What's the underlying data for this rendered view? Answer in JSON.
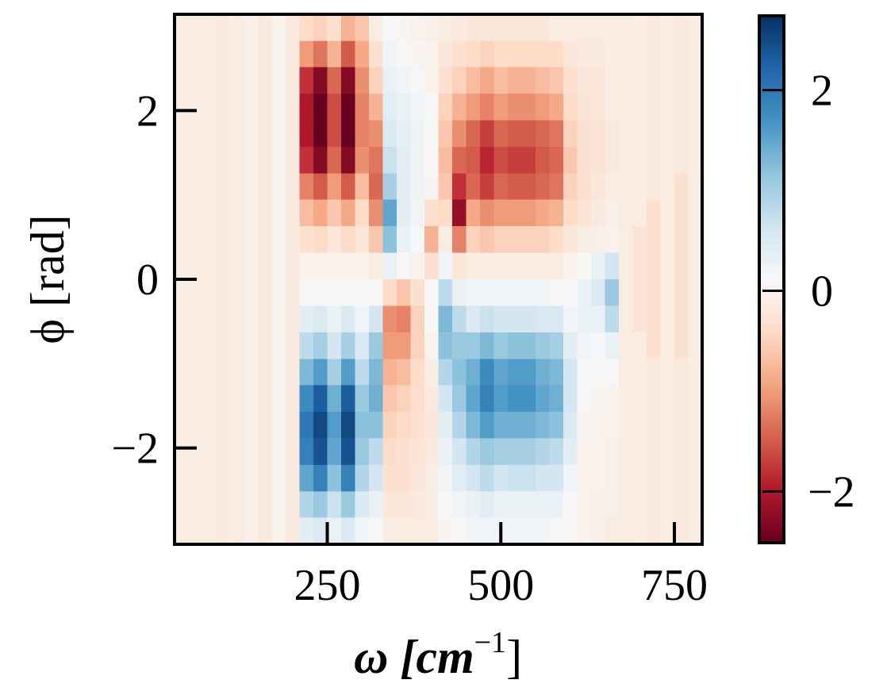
{
  "chart_data": {
    "type": "heatmap",
    "title": "",
    "xlabel": "ω [cm",
    "xlabel_sup": "−1",
    "xlabel_close": "]",
    "ylabel": "ϕ [rad]",
    "xlim": [
      30,
      790
    ],
    "ylim": [
      -3.1416,
      3.1416
    ],
    "x_ticks": [
      250,
      500,
      750
    ],
    "x_tick_labels": [
      "250",
      "500",
      "750"
    ],
    "y_ticks": [
      2,
      0,
      -2
    ],
    "y_tick_labels": [
      "2",
      "0",
      "−2"
    ],
    "colormap": "RdBu",
    "colorbar": {
      "vmin": -2.51,
      "vmax": 2.74,
      "ticks": [
        2,
        0,
        -2
      ],
      "tick_labels": [
        "2",
        "0",
        "−2"
      ]
    },
    "grid": false,
    "x": [
      40,
      60,
      80,
      100,
      120,
      140,
      160,
      180,
      200,
      220,
      240,
      260,
      280,
      300,
      320,
      340,
      360,
      380,
      400,
      420,
      440,
      460,
      480,
      500,
      520,
      540,
      560,
      580,
      600,
      620,
      640,
      660,
      680,
      700,
      720,
      740,
      760,
      780
    ],
    "y": [
      2.98,
      2.67,
      2.36,
      2.04,
      1.73,
      1.41,
      1.1,
      0.79,
      0.47,
      0.16,
      -0.16,
      -0.47,
      -0.79,
      -1.1,
      -1.41,
      -1.73,
      -2.04,
      -2.36,
      -2.67,
      -2.98
    ],
    "z_by_column": [
      [
        -0.1,
        -0.1,
        -0.1,
        -0.1,
        -0.1,
        -0.1,
        -0.1,
        -0.1,
        -0.1,
        -0.1,
        -0.1,
        -0.1,
        -0.1,
        -0.1,
        -0.1,
        -0.1,
        -0.1,
        -0.1,
        -0.1,
        -0.1
      ],
      [
        -0.1,
        -0.1,
        -0.1,
        -0.1,
        -0.1,
        -0.1,
        -0.1,
        -0.1,
        -0.1,
        -0.1,
        -0.1,
        -0.1,
        -0.1,
        -0.1,
        -0.1,
        -0.1,
        -0.1,
        -0.1,
        -0.1,
        -0.1
      ],
      [
        -0.1,
        -0.1,
        -0.1,
        -0.1,
        -0.1,
        -0.1,
        -0.1,
        -0.1,
        -0.1,
        -0.1,
        -0.1,
        -0.1,
        -0.1,
        -0.1,
        -0.1,
        -0.1,
        -0.1,
        -0.1,
        -0.1,
        -0.1
      ],
      [
        -0.15,
        -0.15,
        -0.15,
        -0.15,
        -0.15,
        -0.15,
        -0.15,
        -0.15,
        -0.15,
        -0.15,
        -0.15,
        -0.15,
        -0.15,
        -0.15,
        -0.15,
        -0.15,
        -0.15,
        -0.15,
        -0.15,
        -0.15
      ],
      [
        -0.1,
        -0.1,
        -0.1,
        -0.1,
        -0.1,
        -0.1,
        -0.1,
        -0.1,
        -0.1,
        -0.1,
        -0.1,
        -0.1,
        -0.1,
        -0.1,
        -0.1,
        -0.1,
        -0.1,
        -0.1,
        -0.1,
        -0.1
      ],
      [
        -0.05,
        -0.05,
        -0.05,
        -0.05,
        -0.05,
        -0.05,
        -0.05,
        -0.05,
        -0.05,
        -0.05,
        -0.05,
        -0.05,
        -0.05,
        -0.05,
        -0.05,
        -0.05,
        -0.05,
        -0.05,
        -0.05,
        -0.05
      ],
      [
        -0.15,
        -0.15,
        -0.15,
        -0.15,
        -0.15,
        -0.15,
        -0.15,
        -0.15,
        -0.15,
        -0.15,
        -0.15,
        -0.15,
        -0.15,
        -0.15,
        -0.15,
        -0.15,
        -0.15,
        -0.15,
        -0.15,
        -0.15
      ],
      [
        0,
        0,
        0,
        0,
        0,
        0,
        0,
        0,
        0,
        0,
        0,
        0,
        0,
        0,
        0,
        0,
        0,
        0,
        0,
        0
      ],
      [
        -0.15,
        -0.15,
        -0.15,
        -0.15,
        -0.15,
        -0.15,
        -0.15,
        -0.15,
        -0.15,
        -0.15,
        -0.15,
        -0.15,
        -0.15,
        -0.15,
        -0.15,
        -0.15,
        -0.15,
        -0.15,
        -0.15,
        -0.15
      ],
      [
        -0.4,
        -1.0,
        -1.8,
        -2.0,
        -2.0,
        -1.8,
        -1.2,
        -0.7,
        -0.3,
        0.0,
        0.1,
        0.4,
        0.8,
        1.3,
        1.8,
        2.0,
        1.9,
        1.5,
        0.9,
        0.4
      ],
      [
        -0.5,
        -1.3,
        -2.3,
        -2.5,
        -2.5,
        -2.3,
        -1.5,
        -0.9,
        -0.4,
        0.0,
        0.1,
        0.5,
        1.0,
        1.6,
        2.3,
        2.5,
        2.4,
        1.9,
        1.1,
        0.5
      ],
      [
        -0.3,
        -0.8,
        -1.4,
        -1.6,
        -1.6,
        -1.4,
        -1.0,
        -0.6,
        -0.2,
        0.0,
        0.1,
        0.3,
        0.6,
        1.0,
        1.4,
        1.6,
        1.5,
        1.2,
        0.7,
        0.3
      ],
      [
        -0.8,
        -1.5,
        -2.3,
        -2.5,
        -2.5,
        -2.3,
        -1.5,
        -0.9,
        -0.4,
        0.0,
        0.1,
        0.5,
        1.0,
        1.6,
        2.3,
        2.5,
        2.4,
        1.9,
        1.1,
        0.5
      ],
      [
        -0.6,
        -0.9,
        -1.1,
        -1.2,
        -1.2,
        -1.1,
        -0.7,
        -0.4,
        -0.2,
        0.0,
        0.1,
        0.2,
        0.5,
        0.8,
        1.1,
        1.2,
        1.1,
        0.9,
        0.5,
        0.2
      ],
      [
        -0.1,
        -0.3,
        -0.5,
        -0.8,
        -1.1,
        -1.3,
        -1.4,
        -1.1,
        -0.6,
        -0.1,
        0.1,
        0.6,
        1.1,
        1.3,
        1.4,
        1.2,
        0.8,
        0.6,
        0.3,
        0.1
      ],
      [
        0.1,
        0.2,
        0.3,
        0.4,
        0.5,
        0.7,
        1.0,
        1.5,
        1.2,
        0.3,
        -0.4,
        -1.1,
        -1.0,
        -0.8,
        -0.6,
        -0.5,
        -0.4,
        -0.3,
        -0.2,
        -0.1
      ],
      [
        0.05,
        0.1,
        0.2,
        0.3,
        0.35,
        0.4,
        0.4,
        0.4,
        0.3,
        0.1,
        -0.6,
        -1.2,
        -1.0,
        -0.7,
        -0.5,
        -0.4,
        -0.3,
        -0.3,
        -0.2,
        -0.1
      ],
      [
        0,
        0.05,
        0.1,
        0.2,
        0.25,
        0.25,
        0.25,
        0.2,
        0.15,
        0,
        -0.3,
        -0.5,
        -0.5,
        -0.4,
        -0.35,
        -0.3,
        -0.25,
        -0.2,
        -0.15,
        -0.1
      ],
      [
        -0.05,
        0,
        0,
        0.1,
        0.1,
        0.1,
        0.05,
        -0.3,
        -0.8,
        -0.3,
        0.1,
        0.1,
        0,
        -0.1,
        -0.15,
        -0.2,
        -0.15,
        -0.1,
        -0.1,
        -0.1
      ],
      [
        -0.1,
        -0.2,
        -0.3,
        -0.5,
        -0.6,
        -0.7,
        -0.6,
        -0.4,
        -0.1,
        0.2,
        0.8,
        1.3,
        1.2,
        0.9,
        0.6,
        0.4,
        0.3,
        0.2,
        0.1,
        0.05
      ],
      [
        -0.15,
        -0.3,
        -0.5,
        -0.8,
        -1.1,
        -1.4,
        -1.8,
        -2.2,
        -1.2,
        -0.2,
        0.3,
        0.8,
        1.1,
        1.2,
        1.1,
        0.9,
        0.6,
        0.4,
        0.2,
        0.1
      ],
      [
        -0.2,
        -0.4,
        -0.7,
        -1.0,
        -1.4,
        -1.5,
        -1.4,
        -0.9,
        -0.5,
        -0.1,
        0.2,
        0.5,
        1.1,
        1.4,
        1.5,
        1.3,
        0.9,
        0.6,
        0.3,
        0.2
      ],
      [
        -0.2,
        -0.5,
        -0.9,
        -1.2,
        -1.7,
        -1.9,
        -1.7,
        -1.1,
        -0.6,
        -0.1,
        0.2,
        0.7,
        1.3,
        1.8,
        1.9,
        1.6,
        1.1,
        0.8,
        0.4,
        0.2
      ],
      [
        -0.2,
        -0.4,
        -0.7,
        -1.0,
        -1.4,
        -1.6,
        -1.4,
        -1.0,
        -0.5,
        -0.1,
        0.2,
        0.6,
        1.1,
        1.5,
        1.6,
        1.4,
        1.0,
        0.6,
        0.3,
        0.2
      ],
      [
        -0.2,
        -0.4,
        -0.8,
        -1.1,
        -1.5,
        -1.7,
        -1.5,
        -1.0,
        -0.5,
        -0.1,
        0.2,
        0.6,
        1.2,
        1.6,
        1.7,
        1.4,
        1.0,
        0.7,
        0.3,
        0.2
      ],
      [
        -0.2,
        -0.4,
        -0.8,
        -1.1,
        -1.5,
        -1.7,
        -1.5,
        -1.0,
        -0.5,
        -0.1,
        0.2,
        0.6,
        1.2,
        1.6,
        1.7,
        1.4,
        1.0,
        0.7,
        0.3,
        0.2
      ],
      [
        -0.2,
        -0.4,
        -0.7,
        -1.0,
        -1.4,
        -1.5,
        -1.4,
        -0.9,
        -0.5,
        -0.1,
        0.2,
        0.5,
        1.1,
        1.4,
        1.5,
        1.3,
        0.9,
        0.6,
        0.3,
        0.2
      ],
      [
        -0.1,
        -0.4,
        -0.6,
        -0.9,
        -1.3,
        -1.4,
        -1.3,
        -0.8,
        -0.4,
        -0.1,
        0.1,
        0.5,
        1.0,
        1.3,
        1.4,
        1.2,
        0.8,
        0.6,
        0.3,
        0.1
      ],
      [
        -0.1,
        -0.2,
        -0.3,
        -0.4,
        -0.5,
        -0.6,
        -0.5,
        -0.4,
        -0.2,
        0.0,
        0.1,
        0.2,
        0.4,
        0.6,
        0.6,
        0.5,
        0.4,
        0.2,
        0.1,
        0.1
      ],
      [
        -0.1,
        -0.15,
        -0.2,
        -0.25,
        -0.3,
        -0.3,
        -0.3,
        -0.25,
        -0.1,
        0.1,
        0.3,
        0.3,
        0.2,
        0.15,
        0.1,
        0.05,
        0,
        0,
        0,
        0
      ],
      [
        -0.1,
        -0.15,
        -0.2,
        -0.2,
        -0.25,
        -0.25,
        -0.2,
        -0.15,
        -0.05,
        0.3,
        0.5,
        0.3,
        0.15,
        0.1,
        0.05,
        0,
        0,
        0,
        -0.05,
        -0.05
      ],
      [
        -0.1,
        -0.1,
        -0.1,
        -0.1,
        -0.15,
        -0.15,
        -0.1,
        -0.05,
        0,
        0.6,
        1.1,
        0.8,
        0.3,
        0.1,
        0,
        0,
        -0.05,
        -0.05,
        -0.05,
        -0.1
      ],
      [
        -0.1,
        -0.1,
        -0.1,
        -0.1,
        -0.1,
        -0.1,
        -0.1,
        -0.1,
        -0.1,
        -0.1,
        -0.1,
        -0.1,
        -0.1,
        -0.1,
        -0.1,
        -0.1,
        -0.1,
        -0.1,
        -0.1,
        -0.1
      ],
      [
        -0.1,
        -0.1,
        -0.1,
        -0.1,
        -0.1,
        -0.1,
        -0.1,
        -0.1,
        -0.25,
        -0.25,
        -0.25,
        -0.25,
        -0.1,
        -0.1,
        -0.1,
        -0.1,
        -0.1,
        -0.1,
        -0.1,
        -0.1
      ],
      [
        -0.15,
        -0.15,
        -0.15,
        -0.15,
        -0.15,
        -0.15,
        -0.15,
        -0.3,
        -0.3,
        -0.3,
        -0.3,
        -0.3,
        -0.3,
        -0.15,
        -0.15,
        -0.15,
        -0.15,
        -0.15,
        -0.15,
        -0.15
      ],
      [
        -0.1,
        -0.1,
        -0.1,
        -0.1,
        -0.1,
        -0.1,
        -0.1,
        -0.1,
        -0.1,
        -0.1,
        -0.1,
        -0.1,
        -0.1,
        -0.1,
        -0.1,
        -0.1,
        -0.1,
        -0.1,
        -0.1,
        -0.1
      ],
      [
        -0.15,
        -0.15,
        -0.15,
        -0.15,
        -0.15,
        -0.15,
        -0.3,
        -0.3,
        -0.3,
        -0.3,
        -0.3,
        -0.3,
        -0.3,
        -0.15,
        -0.15,
        -0.15,
        -0.15,
        -0.15,
        -0.15,
        -0.15
      ],
      [
        -0.1,
        -0.1,
        -0.1,
        -0.1,
        -0.1,
        -0.1,
        -0.1,
        -0.1,
        -0.1,
        -0.1,
        -0.1,
        -0.1,
        -0.1,
        -0.1,
        -0.1,
        -0.1,
        -0.1,
        -0.1,
        -0.1,
        -0.1
      ]
    ]
  }
}
